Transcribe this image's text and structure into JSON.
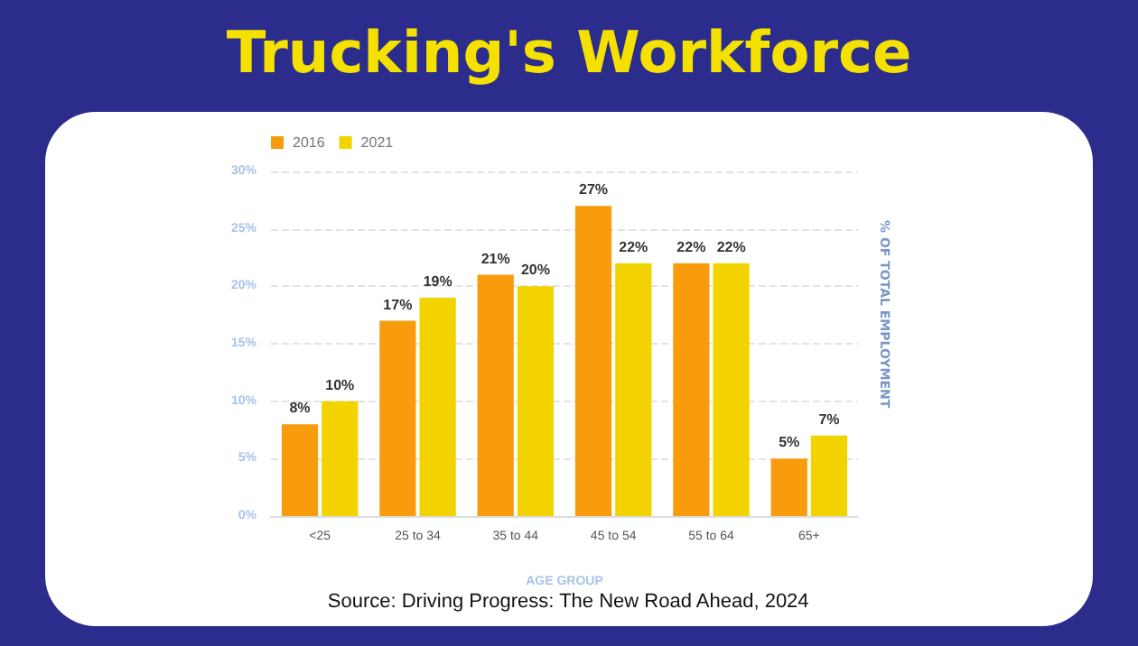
{
  "chart_data": {
    "type": "bar",
    "title": "Trucking's Workforce",
    "xlabel": "AGE GROUP",
    "ylabel": "% OF TOTAL EMPLOYMENT",
    "categories": [
      "<25",
      "25 to 34",
      "35 to 44",
      "45 to 54",
      "55 to 64",
      "65+"
    ],
    "series": [
      {
        "name": "2016",
        "color": "#f89c0e",
        "values": [
          8,
          17,
          21,
          27,
          22,
          5
        ],
        "value_labels": [
          "8%",
          "17%",
          "21%",
          "27%",
          "22%",
          "5%"
        ]
      },
      {
        "name": "2021",
        "color": "#f2d300",
        "values": [
          10,
          19,
          20,
          22,
          22,
          7
        ],
        "value_labels": [
          "10%",
          "19%",
          "20%",
          "22%",
          "22%",
          "7%"
        ]
      }
    ],
    "ylim": [
      0,
      30
    ],
    "yticks": [
      {
        "value": 0,
        "label": "0%"
      },
      {
        "value": 5,
        "label": "5%"
      },
      {
        "value": 10,
        "label": "10%"
      },
      {
        "value": 15,
        "label": "15%"
      },
      {
        "value": 20,
        "label": "20%"
      },
      {
        "value": 25,
        "label": "25%"
      },
      {
        "value": 30,
        "label": "30%"
      }
    ],
    "grid": "y",
    "legend": "top left",
    "annotations": [
      "Source: Driving Progress: The New Road Ahead, 2024"
    ]
  }
}
